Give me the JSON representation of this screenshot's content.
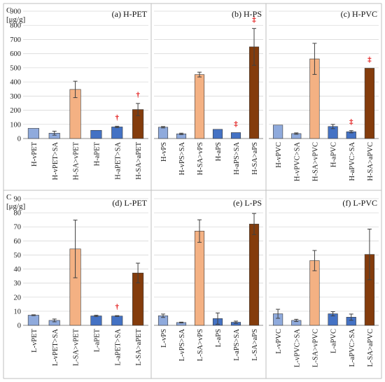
{
  "colors": {
    "light_blue": "#8FAADC",
    "blue": "#4472C4",
    "peach": "#F4B183",
    "brown": "#843C0C",
    "significance": "#E00000",
    "grid": "#D9D9D9",
    "axis": "#595959"
  },
  "unit_label_top": {
    "line1": "C",
    "line2": "[μg/g]"
  },
  "unit_label_bottom": {
    "line1": "C",
    "line2": "[μg/g]"
  },
  "chart_data": [
    {
      "type": "bar",
      "title": "(a) H-PET",
      "categories": [
        "H-vPET",
        "H-vPET>SA",
        "H-SA>vPET",
        "H-aPET",
        "H-aPET>SA",
        "H-SA>aPET"
      ],
      "values": [
        72,
        38,
        347,
        58,
        82,
        205
      ],
      "errors": [
        0,
        14,
        58,
        0,
        5,
        43
      ],
      "colors": [
        "light_blue",
        "light_blue",
        "peach",
        "blue",
        "blue",
        "brown"
      ],
      "markers": [
        "",
        "",
        "",
        "",
        "†",
        "†"
      ],
      "ylim": [
        0,
        900
      ],
      "yticks": [
        "0",
        "100",
        "200",
        "300",
        "400",
        "500",
        "600",
        "700",
        "800",
        "900"
      ],
      "ylabel": "C [μg/g]"
    },
    {
      "type": "bar",
      "title": "(b) H-PS",
      "categories": [
        "H-vPS",
        "H-vPS>SA",
        "H-SA>vPS",
        "H-aPS",
        "H-aPS>SA",
        "H-SA>aPS"
      ],
      "values": [
        80,
        33,
        452,
        65,
        42,
        648
      ],
      "errors": [
        5,
        5,
        17,
        0,
        0,
        130
      ],
      "colors": [
        "light_blue",
        "light_blue",
        "peach",
        "blue",
        "blue",
        "brown"
      ],
      "markers": [
        "",
        "",
        "",
        "",
        "‡",
        "‡"
      ],
      "ylim": [
        0,
        900
      ]
    },
    {
      "type": "bar",
      "title": "(c) H-PVC",
      "categories": [
        "H-vPVC",
        "H-vPVC>SA",
        "H-SA>vPVC",
        "H-aPVC",
        "H-aPVC>SA",
        "H-SA>aPVC"
      ],
      "values": [
        95,
        35,
        563,
        85,
        48,
        497
      ],
      "errors": [
        0,
        5,
        110,
        15,
        8,
        0
      ],
      "colors": [
        "light_blue",
        "light_blue",
        "peach",
        "blue",
        "blue",
        "brown"
      ],
      "markers": [
        "",
        "",
        "",
        "",
        "‡",
        "‡"
      ],
      "ylim": [
        0,
        900
      ]
    },
    {
      "type": "bar",
      "title": "(d) L-PET",
      "categories": [
        "L-vPET",
        "L-vPET>SA",
        "L-SA>vPET",
        "L-aPET",
        "L-aPET>SA",
        "L-SA>aPET"
      ],
      "values": [
        7.2,
        3.5,
        54.3,
        6.7,
        6.6,
        37.2
      ],
      "errors": [
        0.3,
        1.0,
        20.5,
        0.5,
        0.3,
        7.0
      ],
      "colors": [
        "light_blue",
        "light_blue",
        "peach",
        "blue",
        "blue",
        "brown"
      ],
      "markers": [
        "",
        "",
        "",
        "",
        "†",
        ""
      ],
      "ylim": [
        0,
        90
      ],
      "yticks": [
        "0",
        "10",
        "20",
        "30",
        "40",
        "50",
        "60",
        "70",
        "80",
        "90"
      ],
      "ylabel": "C [μg/g]"
    },
    {
      "type": "bar",
      "title": "(e) L-PS",
      "categories": [
        "L-vPS",
        "L-vPS>SA",
        "L-SA>vPS",
        "L-aPS",
        "L-aPS>SA",
        "L-SA>aPS"
      ],
      "values": [
        6.8,
        2.0,
        67.0,
        4.8,
        2.2,
        72.0
      ],
      "errors": [
        1.2,
        0.3,
        8.0,
        4.0,
        0.8,
        7.5
      ],
      "colors": [
        "light_blue",
        "light_blue",
        "peach",
        "blue",
        "blue",
        "brown"
      ],
      "markers": [
        "",
        "",
        "",
        "",
        "",
        ""
      ],
      "ylim": [
        0,
        90
      ]
    },
    {
      "type": "bar",
      "title": "(f) L-PVC",
      "categories": [
        "L-vPVC",
        "L-vPVC>SA",
        "L-SA>vPVC",
        "L-aPVC",
        "L-aPVC>SA",
        "L-SA>aPVC"
      ],
      "values": [
        8.2,
        3.5,
        46.0,
        8.2,
        5.8,
        50.4
      ],
      "errors": [
        3.2,
        0.8,
        7.2,
        1.5,
        2.2,
        18.0
      ],
      "colors": [
        "light_blue",
        "light_blue",
        "peach",
        "blue",
        "blue",
        "brown"
      ],
      "markers": [
        "",
        "",
        "",
        "",
        "",
        ""
      ],
      "ylim": [
        0,
        90
      ]
    }
  ]
}
